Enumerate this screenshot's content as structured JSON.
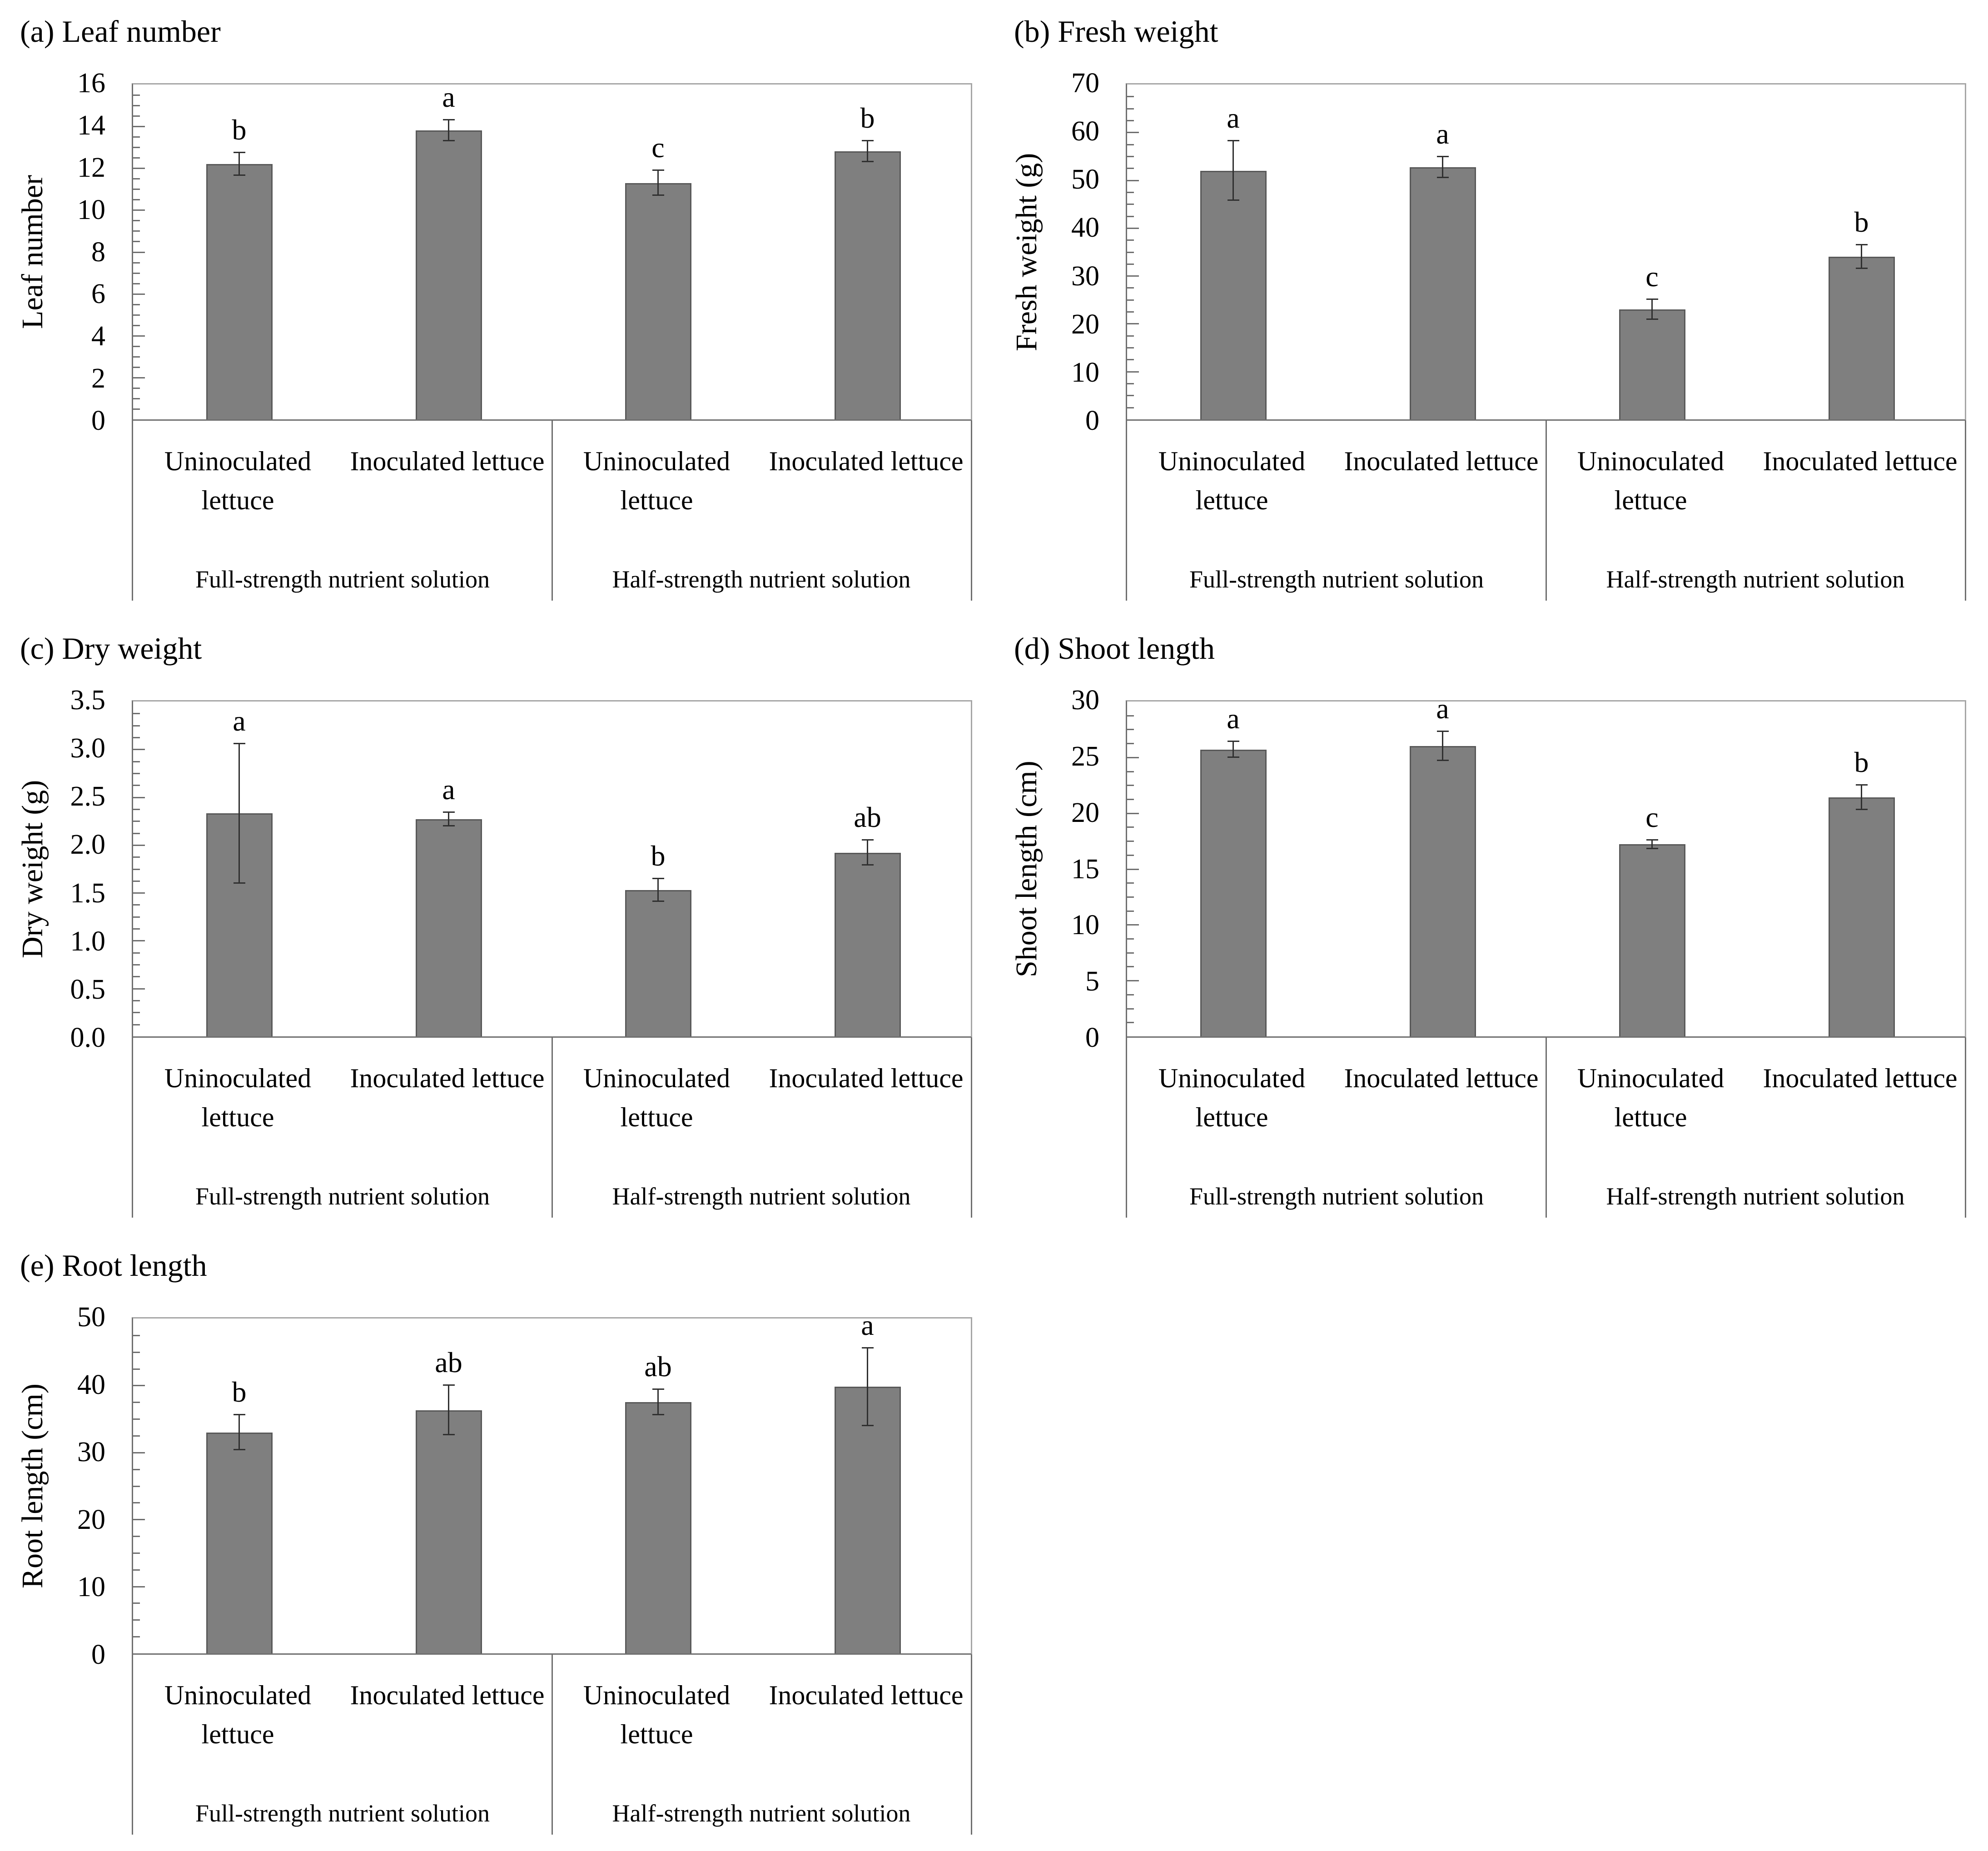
{
  "palette": {
    "background": "#ffffff",
    "bar_fill": "#7f7f7f",
    "bar_border": "#595959",
    "plot_border": "#a6a6a6",
    "axis_line": "#6f6f6f",
    "error_bar": "#303030",
    "text": "#000000"
  },
  "chart_data": [
    {
      "id": "a",
      "type": "bar",
      "title": "(a) Leaf number",
      "ylabel": "Leaf number",
      "xlabel": "",
      "ylim": [
        0,
        16
      ],
      "ytick_step": 2,
      "minor_ticks_per_major": 4,
      "ytick_decimals": 0,
      "grid": false,
      "legend": "none",
      "categories": [
        "Uninoculated lettuce",
        "Inoculated lettuce",
        "Uninoculated lettuce",
        "Inoculated lettuce"
      ],
      "group_labels": [
        "Full-strength nutrient solution",
        "Half-strength nutrient solution"
      ],
      "values": [
        12.2,
        13.8,
        11.3,
        12.8
      ],
      "errors": [
        0.55,
        0.5,
        0.6,
        0.5
      ],
      "sig_letters": [
        "b",
        "a",
        "c",
        "b"
      ]
    },
    {
      "id": "b",
      "type": "bar",
      "title": "(b) Fresh weight",
      "ylabel": "Fresh weight (g)",
      "xlabel": "",
      "ylim": [
        0,
        70
      ],
      "ytick_step": 10,
      "minor_ticks_per_major": 4,
      "ytick_decimals": 0,
      "grid": false,
      "legend": "none",
      "categories": [
        "Uninoculated lettuce",
        "Inoculated lettuce",
        "Uninoculated lettuce",
        "Inoculated lettuce"
      ],
      "group_labels": [
        "Full-strength nutrient solution",
        "Half-strength nutrient solution"
      ],
      "values": [
        52,
        52.7,
        23,
        34
      ],
      "errors": [
        6.2,
        2.2,
        2.1,
        2.5
      ],
      "sig_letters": [
        "a",
        "a",
        "c",
        "b"
      ]
    },
    {
      "id": "c",
      "type": "bar",
      "title": "(c) Dry weight",
      "ylabel": "Dry weight (g)",
      "xlabel": "",
      "ylim": [
        0,
        3.5
      ],
      "ytick_step": 0.5,
      "minor_ticks_per_major": 4,
      "ytick_decimals": 1,
      "grid": false,
      "legend": "none",
      "categories": [
        "Uninoculated lettuce",
        "Inoculated lettuce",
        "Uninoculated lettuce",
        "Inoculated lettuce"
      ],
      "group_labels": [
        "Full-strength nutrient solution",
        "Half-strength nutrient solution"
      ],
      "values": [
        2.33,
        2.27,
        1.53,
        1.92
      ],
      "errors": [
        0.73,
        0.07,
        0.12,
        0.13
      ],
      "sig_letters": [
        "a",
        "a",
        "b",
        "ab"
      ]
    },
    {
      "id": "d",
      "type": "bar",
      "title": "(d) Shoot length",
      "ylabel": "Shoot length (cm)",
      "xlabel": "",
      "ylim": [
        0,
        30
      ],
      "ytick_step": 5,
      "minor_ticks_per_major": 4,
      "ytick_decimals": 0,
      "grid": false,
      "legend": "none",
      "categories": [
        "Uninoculated lettuce",
        "Inoculated lettuce",
        "Uninoculated lettuce",
        "Inoculated lettuce"
      ],
      "group_labels": [
        "Full-strength nutrient solution",
        "Half-strength nutrient solution"
      ],
      "values": [
        25.7,
        26,
        17.2,
        21.4
      ],
      "errors": [
        0.7,
        1.3,
        0.4,
        1.1
      ],
      "sig_letters": [
        "a",
        "a",
        "c",
        "b"
      ]
    },
    {
      "id": "e",
      "type": "bar",
      "title": "(e) Root length",
      "ylabel": "Root length (cm)",
      "xlabel": "",
      "ylim": [
        0,
        50
      ],
      "ytick_step": 10,
      "minor_ticks_per_major": 4,
      "ytick_decimals": 0,
      "grid": false,
      "legend": "none",
      "categories": [
        "Uninoculated lettuce",
        "Inoculated lettuce",
        "Uninoculated lettuce",
        "Inoculated lettuce"
      ],
      "group_labels": [
        "Full-strength nutrient solution",
        "Half-strength nutrient solution"
      ],
      "values": [
        33,
        36.3,
        37.5,
        39.8
      ],
      "errors": [
        2.6,
        3.7,
        1.9,
        5.8
      ],
      "sig_letters": [
        "b",
        "ab",
        "ab",
        "a"
      ]
    }
  ]
}
